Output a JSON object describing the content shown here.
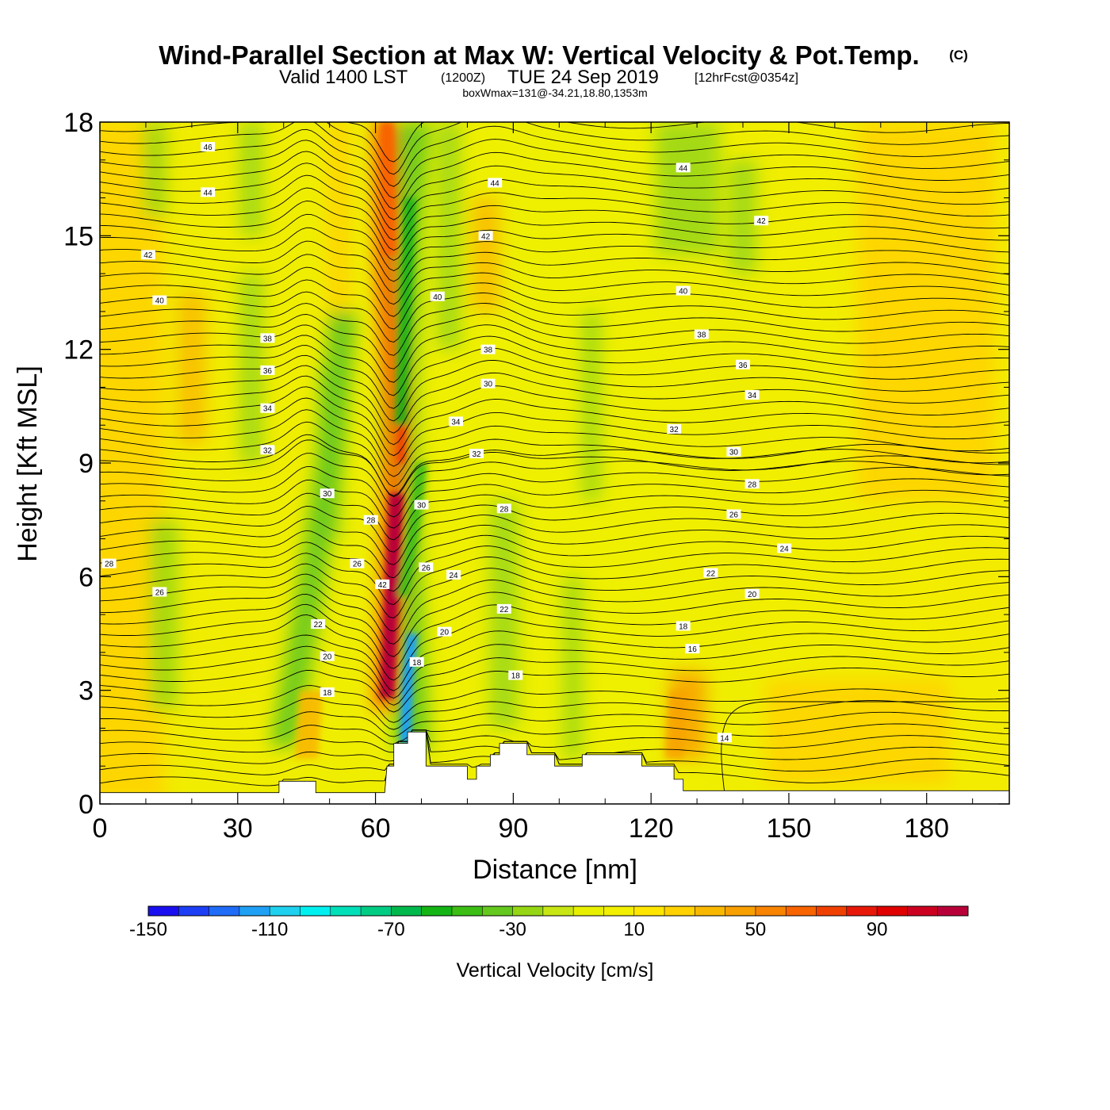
{
  "chart_data": {
    "type": "heatmap",
    "title": "Wind-Parallel Section at Max W: Vertical Velocity & Pot.Temp.",
    "title_mark": "(C)",
    "subtitle_valid": "Valid 1400 LST",
    "subtitle_utc": "(1200Z)",
    "subtitle_date": "TUE 24 Sep 2019",
    "subtitle_fcst": "[12hrFcst@0354z]",
    "subtitle_box": "boxWmax=131@-34.21,18.80,1353m",
    "xlabel": "Distance [nm]",
    "ylabel": "Height [Kft MSL]",
    "xlim": [
      0,
      198
    ],
    "ylim": [
      0,
      18
    ],
    "x_ticks": [
      0,
      30,
      60,
      90,
      120,
      150,
      180
    ],
    "y_ticks": [
      0,
      3,
      6,
      9,
      12,
      15,
      18
    ],
    "colorbar": {
      "title": "Vertical Velocity [cm/s]",
      "min": -150,
      "max": 120,
      "step": 10,
      "tick_values": [
        -150,
        -110,
        -70,
        -30,
        10,
        50,
        90
      ],
      "colors": [
        "#1a0ff0",
        "#1c3ef5",
        "#1f6cf7",
        "#1fa0f5",
        "#1fd1ee",
        "#00f0f0",
        "#00e0b8",
        "#00cc84",
        "#00b84c",
        "#14b414",
        "#3cbe14",
        "#64c81e",
        "#96d614",
        "#c8e614",
        "#e8f000",
        "#f2ef00",
        "#ffe600",
        "#ffd200",
        "#f9b800",
        "#f8a000",
        "#f88400",
        "#f86400",
        "#f04000",
        "#e81808",
        "#e00000",
        "#cc0020",
        "#b80038"
      ]
    },
    "w_fields": [
      {
        "name": "downdraft-core",
        "x": 67,
        "y": 3.2,
        "w": -145
      },
      {
        "name": "downdraft-upper",
        "x": 65,
        "y": 11,
        "w": -60
      },
      {
        "name": "updraft-core",
        "x": 63.5,
        "y": 5.5,
        "w": 118
      },
      {
        "name": "updraft-top",
        "x": 62.5,
        "y": 17.5,
        "w": 60
      },
      {
        "name": "secondary-descent",
        "x": 42,
        "y": 4,
        "w": -45
      },
      {
        "name": "lee-ascent",
        "x": 45,
        "y": 1.8,
        "w": 35
      },
      {
        "name": "upper-green-left",
        "x": 12,
        "y": 17,
        "w": -25
      },
      {
        "name": "upper-green-right",
        "x": 128,
        "y": 17,
        "w": -25
      }
    ],
    "terrain": {
      "x": [
        0,
        0,
        39,
        39,
        47,
        47,
        52,
        62,
        62.5,
        64,
        64,
        67,
        67,
        71,
        71,
        80,
        80,
        82,
        82,
        85,
        85,
        87,
        87,
        93,
        93,
        99,
        99,
        105,
        105,
        118,
        118,
        125,
        125,
        127,
        127,
        198
      ],
      "z": [
        0.3,
        0.3,
        0.3,
        0.6,
        0.6,
        0.3,
        0.3,
        0.3,
        1.0,
        1.0,
        1.6,
        1.6,
        1.9,
        1.9,
        1.0,
        1.0,
        0.65,
        0.65,
        1.0,
        1.0,
        1.3,
        1.3,
        1.6,
        1.6,
        1.3,
        1.3,
        1.0,
        1.0,
        1.3,
        1.3,
        1.0,
        1.0,
        0.65,
        0.65,
        0.35,
        0.35
      ]
    },
    "contour_labels": [
      {
        "text": "46",
        "x": 23.5,
        "y": 17.35
      },
      {
        "text": "44",
        "x": 23.5,
        "y": 16.15
      },
      {
        "text": "44",
        "x": 86,
        "y": 16.4
      },
      {
        "text": "44",
        "x": 127,
        "y": 16.8
      },
      {
        "text": "42",
        "x": 10.5,
        "y": 14.5
      },
      {
        "text": "42",
        "x": 84,
        "y": 15.0
      },
      {
        "text": "42",
        "x": 144,
        "y": 15.4
      },
      {
        "text": "40",
        "x": 13,
        "y": 13.3
      },
      {
        "text": "40",
        "x": 73.5,
        "y": 13.4
      },
      {
        "text": "40",
        "x": 127,
        "y": 13.55
      },
      {
        "text": "38",
        "x": 36.5,
        "y": 12.3
      },
      {
        "text": "38",
        "x": 84.5,
        "y": 12.0
      },
      {
        "text": "38",
        "x": 131,
        "y": 12.4
      },
      {
        "text": "36",
        "x": 36.5,
        "y": 11.45
      },
      {
        "text": "36",
        "x": 140,
        "y": 11.6
      },
      {
        "text": "34",
        "x": 36.5,
        "y": 10.45
      },
      {
        "text": "34",
        "x": 77.5,
        "y": 10.1
      },
      {
        "text": "34",
        "x": 142,
        "y": 10.8
      },
      {
        "text": "32",
        "x": 36.5,
        "y": 9.35
      },
      {
        "text": "32",
        "x": 82,
        "y": 9.25
      },
      {
        "text": "32",
        "x": 125,
        "y": 9.9
      },
      {
        "text": "30",
        "x": 49.5,
        "y": 8.2
      },
      {
        "text": "30",
        "x": 70,
        "y": 7.9
      },
      {
        "text": "30",
        "x": 84.5,
        "y": 11.1
      },
      {
        "text": "30",
        "x": 138,
        "y": 9.3
      },
      {
        "text": "28",
        "x": 59,
        "y": 7.5
      },
      {
        "text": "28",
        "x": 88,
        "y": 7.8
      },
      {
        "text": "28",
        "x": 142,
        "y": 8.45
      },
      {
        "text": "28",
        "x": 2,
        "y": 6.35
      },
      {
        "text": "26",
        "x": 56,
        "y": 6.35
      },
      {
        "text": "26",
        "x": 71,
        "y": 6.25
      },
      {
        "text": "26",
        "x": 13,
        "y": 5.6
      },
      {
        "text": "26",
        "x": 138,
        "y": 7.65
      },
      {
        "text": "24",
        "x": 77,
        "y": 6.05
      },
      {
        "text": "24",
        "x": 149,
        "y": 6.75
      },
      {
        "text": "22",
        "x": 47.5,
        "y": 4.75
      },
      {
        "text": "22",
        "x": 88,
        "y": 5.15
      },
      {
        "text": "22",
        "x": 133,
        "y": 6.1
      },
      {
        "text": "20",
        "x": 49.5,
        "y": 3.9
      },
      {
        "text": "20",
        "x": 75,
        "y": 4.55
      },
      {
        "text": "20",
        "x": 142,
        "y": 5.55
      },
      {
        "text": "18",
        "x": 49.5,
        "y": 2.95
      },
      {
        "text": "18",
        "x": 69,
        "y": 3.75
      },
      {
        "text": "18",
        "x": 90.5,
        "y": 3.4
      },
      {
        "text": "18",
        "x": 127,
        "y": 4.7
      },
      {
        "text": "16",
        "x": 129,
        "y": 4.1
      },
      {
        "text": "14",
        "x": 136,
        "y": 1.75
      },
      {
        "text": "42",
        "x": 61.5,
        "y": 5.8
      }
    ]
  }
}
